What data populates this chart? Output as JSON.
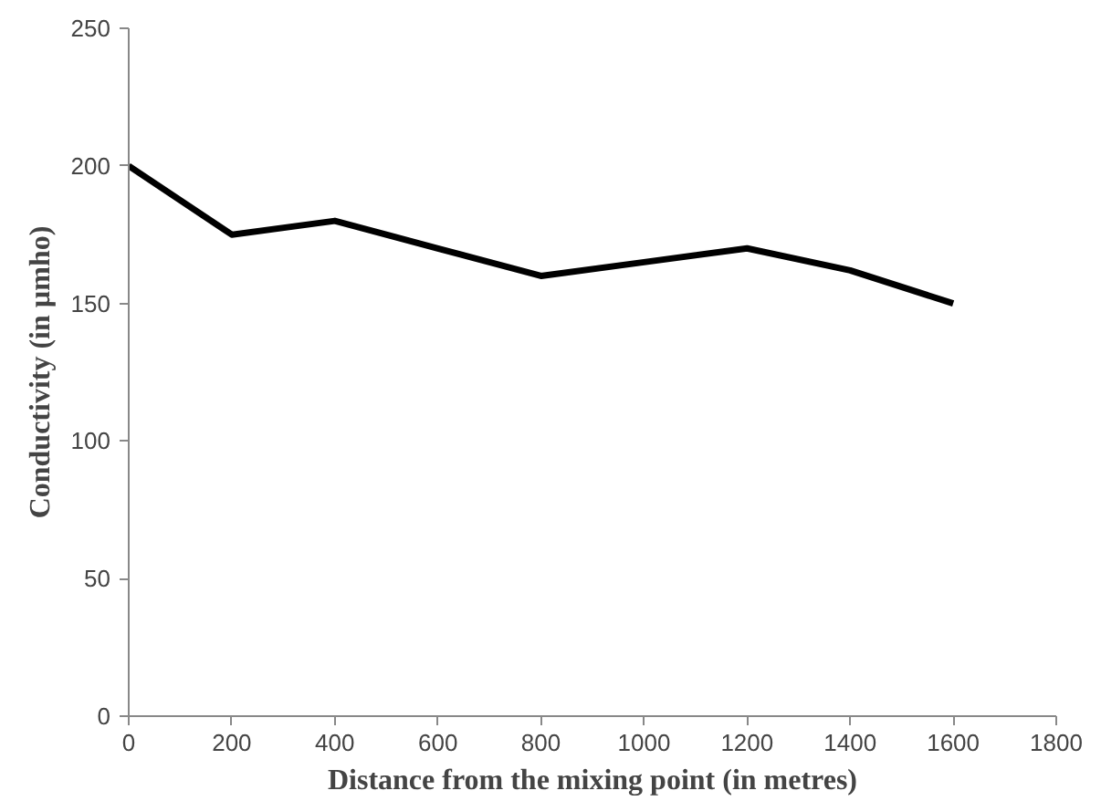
{
  "chart_data": {
    "type": "line",
    "xlabel": "Distance from the mixing point (in metres)",
    "ylabel": "Conductivity (in µmho)",
    "x": [
      0,
      200,
      400,
      600,
      800,
      1000,
      1200,
      1400,
      1600
    ],
    "series": [
      {
        "color": "#000000",
        "values": [
          200,
          175,
          180,
          170,
          160,
          165,
          170,
          162,
          150
        ]
      }
    ],
    "xlim": [
      0,
      1800
    ],
    "xticks": [
      0,
      200,
      400,
      600,
      800,
      1000,
      1200,
      1400,
      1600,
      1800
    ],
    "ylim": [
      0,
      250
    ],
    "yticks": [
      0,
      50,
      100,
      150,
      200,
      250
    ],
    "grid": false,
    "marker": "none",
    "line_style": "solid"
  }
}
